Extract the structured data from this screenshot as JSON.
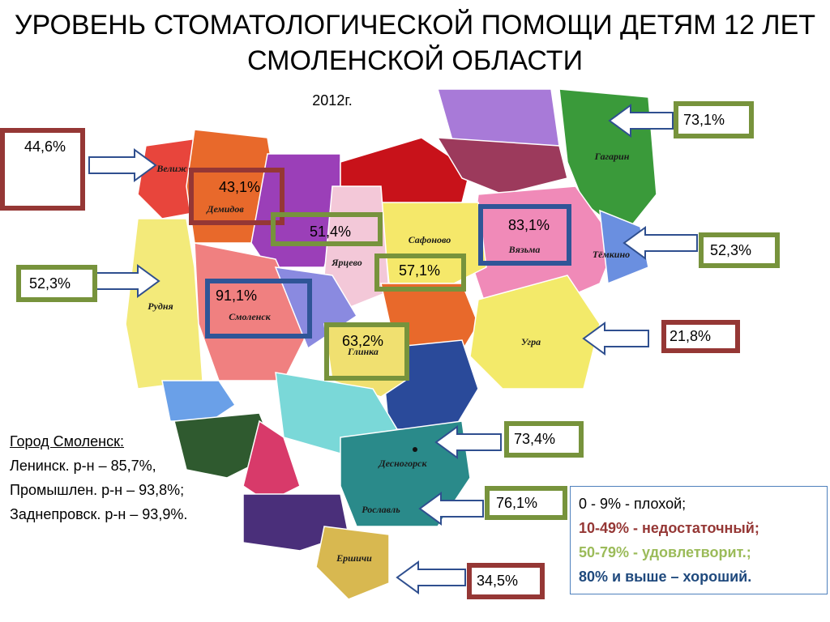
{
  "title": "УРОВЕНЬ СТОМАТОЛОГИЧЕСКОЙ ПОМОЩИ ДЕТЯМ 12 ЛЕТ СМОЛЕНСКОЙ ОБЛАСТИ",
  "year": "2012г.",
  "regions": [
    {
      "label": "Велиж"
    },
    {
      "label": "Демидов"
    },
    {
      "label": "Сафоново"
    },
    {
      "label": "Вязьма"
    },
    {
      "label": "Ярцево"
    },
    {
      "label": "Тёмкино"
    },
    {
      "label": "Гагарин"
    },
    {
      "label": "Рудня"
    },
    {
      "label": "Смоленск"
    },
    {
      "label": "Глинка"
    },
    {
      "label": "Угра"
    },
    {
      "label": "Десногорск"
    },
    {
      "label": "Рославль"
    },
    {
      "label": "Ершичи"
    }
  ],
  "callouts": [
    {
      "label": "44,6%"
    },
    {
      "label": "43,1%"
    },
    {
      "label": "51,4%"
    },
    {
      "label": "83,1%"
    },
    {
      "label": "57,1%"
    },
    {
      "label": "91,1%"
    },
    {
      "label": "63,2%"
    },
    {
      "label": "73,1%"
    },
    {
      "label": "52,3%"
    },
    {
      "label": "52,3%"
    },
    {
      "label": "21,8%"
    },
    {
      "label": "73,4%"
    },
    {
      "label": "76,1%"
    },
    {
      "label": "34,5%"
    }
  ],
  "city_note": {
    "heading": "Город Смоленск:",
    "lines": [
      "Ленинск. р-н – 85,7%,",
      "Промышлен. р-н – 93,8%;",
      "Заднепровск. р-н – 93,9%."
    ]
  },
  "legend": [
    "0 - 9% - плохой;",
    "10-49% - недостаточный;",
    "50-79% - удовлетворит.;",
    "80% и выше – хороший."
  ]
}
